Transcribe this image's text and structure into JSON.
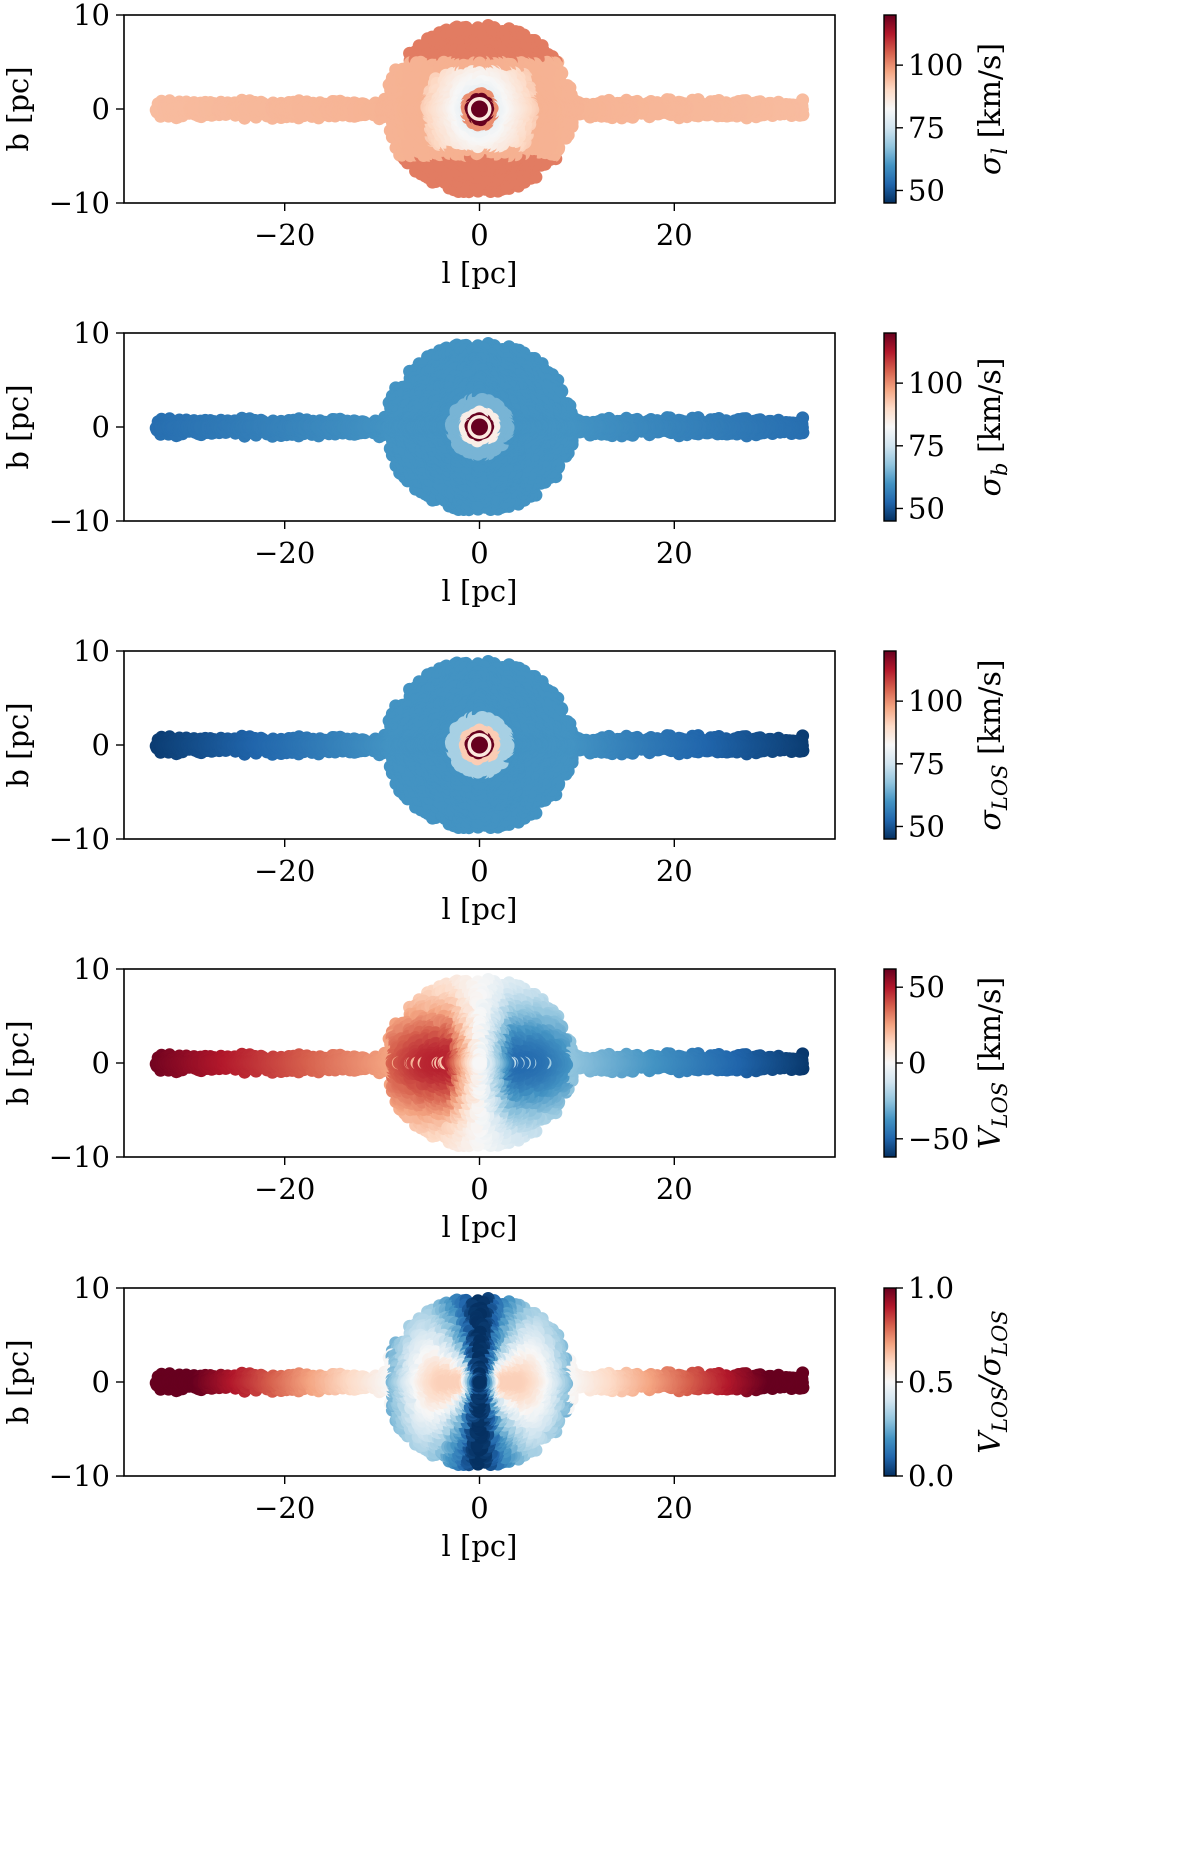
{
  "colors": {
    "cmap": [
      "#053061",
      "#2166ac",
      "#4393c3",
      "#92c5de",
      "#d1e5f0",
      "#f7f7f7",
      "#fddbc7",
      "#f4a582",
      "#d6604d",
      "#b2182b",
      "#67001f"
    ]
  },
  "chart_data": [
    {
      "type": "scatter",
      "title": "",
      "xlabel": "l [pc]",
      "ylabel": "b [pc]",
      "xlim": [
        -36.5,
        36.5
      ],
      "ylim": [
        -10,
        10
      ],
      "xticks": [
        -20,
        0,
        20
      ],
      "xtick_labels": [
        "−20",
        "0",
        "20"
      ],
      "yticks": [
        -10,
        0,
        10
      ],
      "ytick_labels": [
        "−10",
        "0",
        "10"
      ],
      "colorbar": {
        "label_symbol": "σ",
        "label_sub": "l",
        "label_unit": " [km/s]",
        "range": [
          45,
          120
        ],
        "ticks": [
          50,
          75,
          100
        ],
        "tick_labels": [
          "50",
          "75",
          "100"
        ]
      },
      "field": "sigma_l",
      "description_of_values": "Velocity dispersion in l: ~100 km/s in the disk and halo, ~80 km/s ring around the center, up to 120 km/s at the very center"
    },
    {
      "type": "scatter",
      "title": "",
      "xlabel": "l [pc]",
      "ylabel": "b [pc]",
      "xlim": [
        -36.5,
        36.5
      ],
      "ylim": [
        -10,
        10
      ],
      "xticks": [
        -20,
        0,
        20
      ],
      "xtick_labels": [
        "−20",
        "0",
        "20"
      ],
      "yticks": [
        -10,
        0,
        10
      ],
      "ytick_labels": [
        "−10",
        "0",
        "10"
      ],
      "colorbar": {
        "label_symbol": "σ",
        "label_sub": "b",
        "label_unit": " [km/s]",
        "range": [
          45,
          120
        ],
        "ticks": [
          50,
          75,
          100
        ],
        "tick_labels": [
          "50",
          "75",
          "100"
        ]
      },
      "field": "sigma_b",
      "description_of_values": "Velocity dispersion in b: ~55-60 km/s everywhere, rising to 120 km/s at the center"
    },
    {
      "type": "scatter",
      "title": "",
      "xlabel": "l [pc]",
      "ylabel": "b [pc]",
      "xlim": [
        -36.5,
        36.5
      ],
      "ylim": [
        -10,
        10
      ],
      "xticks": [
        -20,
        0,
        20
      ],
      "xtick_labels": [
        "−20",
        "0",
        "20"
      ],
      "yticks": [
        -10,
        0,
        10
      ],
      "ytick_labels": [
        "−10",
        "0",
        "10"
      ],
      "colorbar": {
        "label_symbol": "σ",
        "label_sub": "LOS",
        "label_unit": "  [km/s]",
        "range": [
          45,
          120
        ],
        "ticks": [
          50,
          75,
          100
        ],
        "tick_labels": [
          "50",
          "75",
          "100"
        ]
      },
      "field": "sigma_los",
      "description_of_values": "Line-of-sight dispersion: ~60 km/s in cluster, decreasing to ~47 km/s at disk ends, 120 km/s at center"
    },
    {
      "type": "scatter",
      "title": "",
      "xlabel": "l [pc]",
      "ylabel": "b [pc]",
      "xlim": [
        -36.5,
        36.5
      ],
      "ylim": [
        -10,
        10
      ],
      "xticks": [
        -20,
        0,
        20
      ],
      "xtick_labels": [
        "−20",
        "0",
        "20"
      ],
      "yticks": [
        -10,
        0,
        10
      ],
      "ytick_labels": [
        "−10",
        "0",
        "10"
      ],
      "colorbar": {
        "label_symbol": "V",
        "label_sub": "LOS",
        "label_unit": "  [km/s]",
        "range": [
          -62,
          62
        ],
        "ticks": [
          -50,
          0,
          50
        ],
        "tick_labels": [
          "−50",
          "0",
          "50"
        ]
      },
      "field": "v_los",
      "description_of_values": "Line-of-sight velocity: positive (~+60 km/s) at negative l, negative (~-60 km/s) at positive l, peaks of ~±45 km/s near l=±3 pc"
    },
    {
      "type": "scatter",
      "title": "",
      "xlabel": "l [pc]",
      "ylabel": "b [pc]",
      "xlim": [
        -36.5,
        36.5
      ],
      "ylim": [
        -10,
        10
      ],
      "xticks": [
        -20,
        0,
        20
      ],
      "xtick_labels": [
        "−20",
        "0",
        "20"
      ],
      "yticks": [
        -10,
        0,
        10
      ],
      "ytick_labels": [
        "−10",
        "0",
        "10"
      ],
      "colorbar": {
        "label_symbol": "V",
        "label_sub": "LOS",
        "label_mid": "/σ",
        "label_sub2": "LOS",
        "label_unit": "",
        "range": [
          0,
          1
        ],
        "ticks": [
          0.0,
          0.5,
          1.0
        ],
        "tick_labels": [
          "0.0",
          "0.5",
          "1.0"
        ]
      },
      "field": "vlos_over_sigma",
      "description_of_values": "Ratio |V_LOS|/sigma_LOS: ~1.0 at disk ends, ~0.6 near l=±3 pc, ~0 along the minor axis of the cluster"
    }
  ]
}
